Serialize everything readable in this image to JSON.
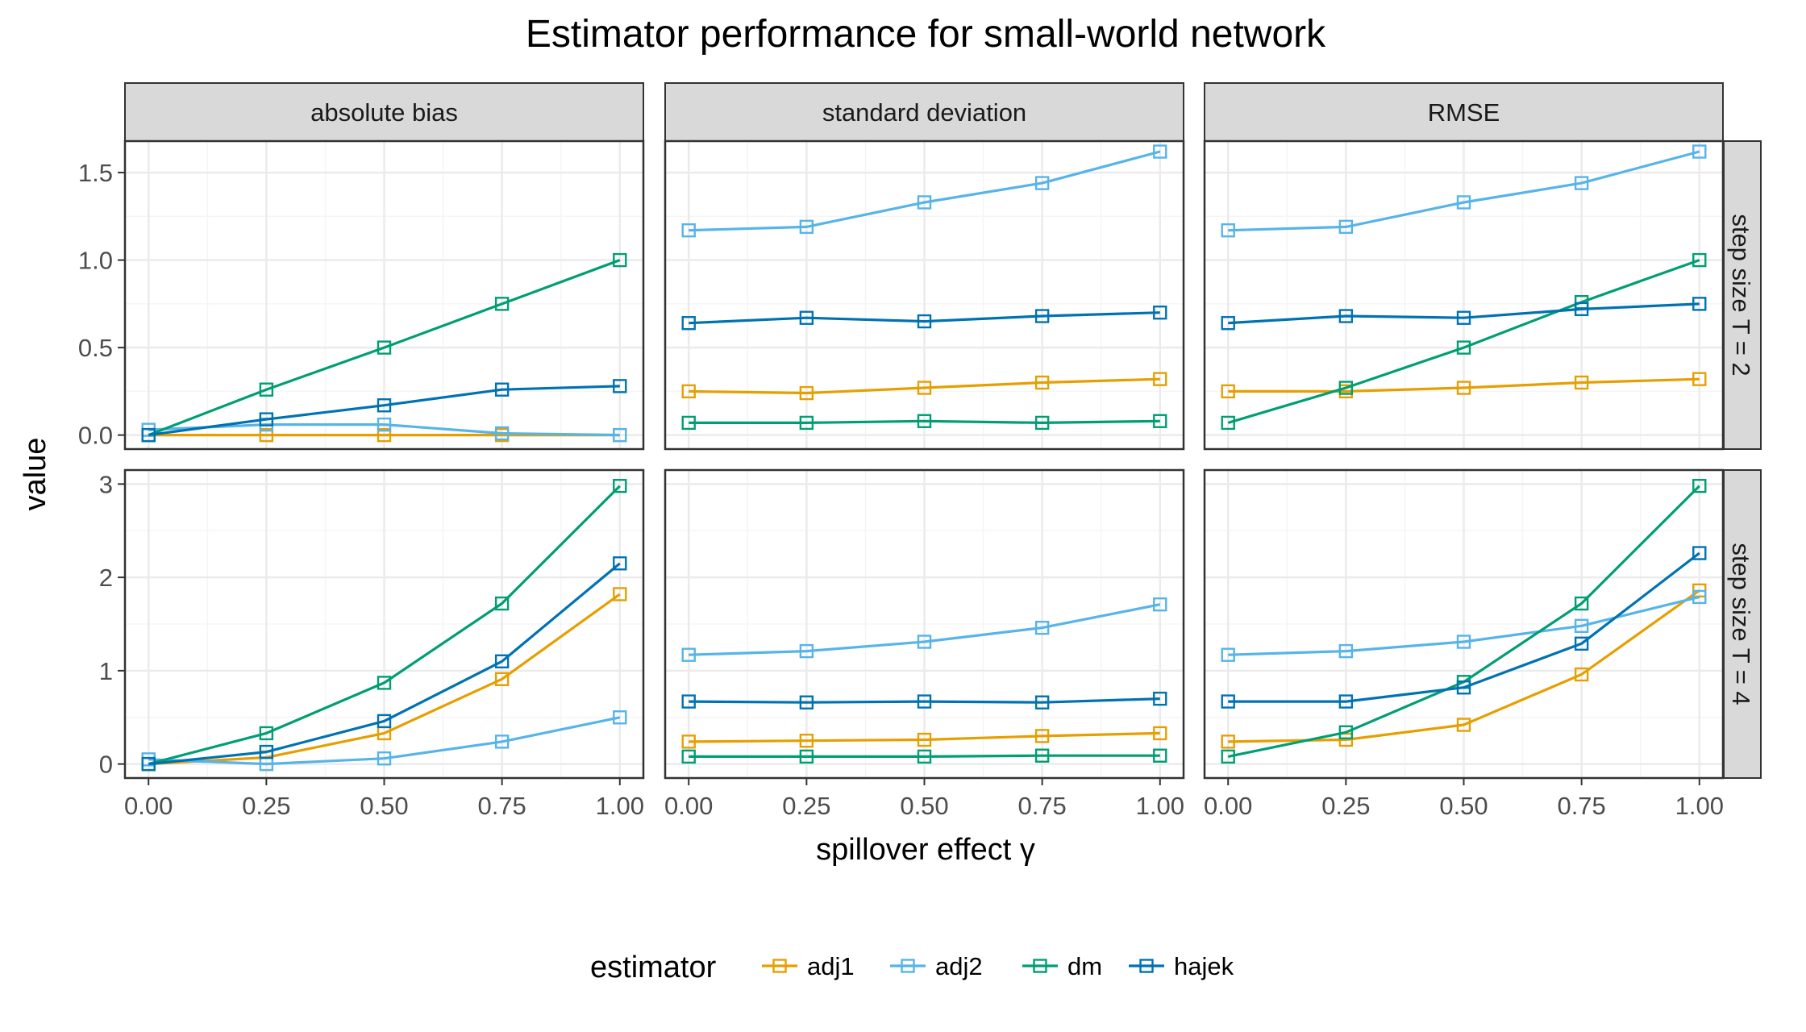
{
  "chart_data": {
    "type": "line",
    "title": "Estimator performance for small-world network",
    "xlabel": "spillover effect γ",
    "ylabel": "value",
    "x": [
      0.0,
      0.25,
      0.5,
      0.75,
      1.0
    ],
    "x_tick_labels": [
      "0.00",
      "0.25",
      "0.50",
      "0.75",
      "1.00"
    ],
    "xlim": [
      -0.05,
      1.05
    ],
    "grid": true,
    "legend": {
      "title": "estimator",
      "position": "bottom",
      "entries": [
        "adj1",
        "adj2",
        "dm",
        "hajek"
      ]
    },
    "colors": {
      "adj1": "#E69F00",
      "adj2": "#56B4E9",
      "dm": "#009E73",
      "hajek": "#0072B2",
      "strip_bg": "#d9d9d9",
      "grid_major": "#ebebeb",
      "grid_minor": "#f5f5f5",
      "panel_border": "#333333"
    },
    "col_facets": [
      "absolute bias",
      "standard deviation",
      "RMSE"
    ],
    "row_facets": [
      {
        "label": "step size T = 2",
        "ylim": [
          -0.08,
          1.68
        ],
        "y_ticks": [
          0,
          0.5,
          1.0,
          1.5
        ],
        "y_tick_labels": [
          "0.0",
          "0.5",
          "1.0",
          "1.5"
        ],
        "panels": [
          {
            "facet": "absolute bias",
            "series": [
              {
                "name": "adj1",
                "values": [
                  0.0,
                  0.0,
                  0.0,
                  0.0,
                  0.0
                ]
              },
              {
                "name": "adj2",
                "values": [
                  0.03,
                  0.06,
                  0.06,
                  0.01,
                  0.0
                ]
              },
              {
                "name": "dm",
                "values": [
                  0.0,
                  0.26,
                  0.5,
                  0.75,
                  1.0
                ]
              },
              {
                "name": "hajek",
                "values": [
                  0.0,
                  0.09,
                  0.17,
                  0.26,
                  0.28
                ]
              }
            ]
          },
          {
            "facet": "standard deviation",
            "series": [
              {
                "name": "adj1",
                "values": [
                  0.25,
                  0.24,
                  0.27,
                  0.3,
                  0.32
                ]
              },
              {
                "name": "adj2",
                "values": [
                  1.17,
                  1.19,
                  1.33,
                  1.44,
                  1.62
                ]
              },
              {
                "name": "dm",
                "values": [
                  0.07,
                  0.07,
                  0.08,
                  0.07,
                  0.08
                ]
              },
              {
                "name": "hajek",
                "values": [
                  0.64,
                  0.67,
                  0.65,
                  0.68,
                  0.7
                ]
              }
            ]
          },
          {
            "facet": "RMSE",
            "series": [
              {
                "name": "adj1",
                "values": [
                  0.25,
                  0.25,
                  0.27,
                  0.3,
                  0.32
                ]
              },
              {
                "name": "adj2",
                "values": [
                  1.17,
                  1.19,
                  1.33,
                  1.44,
                  1.62
                ]
              },
              {
                "name": "dm",
                "values": [
                  0.07,
                  0.27,
                  0.5,
                  0.76,
                  1.0
                ]
              },
              {
                "name": "hajek",
                "values": [
                  0.64,
                  0.68,
                  0.67,
                  0.72,
                  0.75
                ]
              }
            ]
          }
        ]
      },
      {
        "label": "step size T = 4",
        "ylim": [
          -0.15,
          3.15
        ],
        "y_ticks": [
          0,
          1,
          2,
          3
        ],
        "y_tick_labels": [
          "0",
          "1",
          "2",
          "3"
        ],
        "panels": [
          {
            "facet": "absolute bias",
            "series": [
              {
                "name": "adj1",
                "values": [
                  0.0,
                  0.07,
                  0.33,
                  0.91,
                  1.82
                ]
              },
              {
                "name": "adj2",
                "values": [
                  0.05,
                  0.0,
                  0.06,
                  0.24,
                  0.5
                ]
              },
              {
                "name": "dm",
                "values": [
                  0.0,
                  0.33,
                  0.87,
                  1.72,
                  2.98
                ]
              },
              {
                "name": "hajek",
                "values": [
                  0.0,
                  0.13,
                  0.46,
                  1.1,
                  2.15
                ]
              }
            ]
          },
          {
            "facet": "standard deviation",
            "series": [
              {
                "name": "adj1",
                "values": [
                  0.24,
                  0.25,
                  0.26,
                  0.3,
                  0.33
                ]
              },
              {
                "name": "adj2",
                "values": [
                  1.17,
                  1.21,
                  1.31,
                  1.46,
                  1.71
                ]
              },
              {
                "name": "dm",
                "values": [
                  0.08,
                  0.08,
                  0.08,
                  0.09,
                  0.09
                ]
              },
              {
                "name": "hajek",
                "values": [
                  0.67,
                  0.66,
                  0.67,
                  0.66,
                  0.7
                ]
              }
            ]
          },
          {
            "facet": "RMSE",
            "series": [
              {
                "name": "adj1",
                "values": [
                  0.24,
                  0.26,
                  0.42,
                  0.96,
                  1.86
                ]
              },
              {
                "name": "adj2",
                "values": [
                  1.17,
                  1.21,
                  1.31,
                  1.48,
                  1.79
                ]
              },
              {
                "name": "dm",
                "values": [
                  0.08,
                  0.34,
                  0.88,
                  1.72,
                  2.98
                ]
              },
              {
                "name": "hajek",
                "values": [
                  0.67,
                  0.67,
                  0.82,
                  1.29,
                  2.26
                ]
              }
            ]
          }
        ]
      }
    ]
  }
}
